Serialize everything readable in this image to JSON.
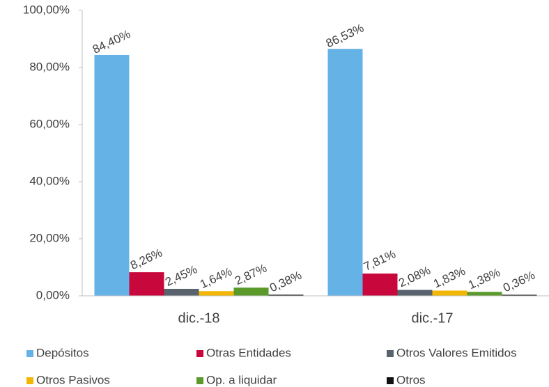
{
  "chart_data": {
    "type": "bar",
    "categories": [
      "dic.-18",
      "dic.-17"
    ],
    "series": [
      {
        "name": "Depósitos",
        "color": "#64b2e6",
        "values": [
          84.4,
          86.53
        ],
        "value_labels": [
          "84,40%",
          "86,53%"
        ]
      },
      {
        "name": "Otras Entidades",
        "color": "#c8073d",
        "values": [
          8.26,
          7.81
        ],
        "value_labels": [
          "8,26%",
          "7,81%"
        ]
      },
      {
        "name": "Otros Valores Emitidos",
        "color": "#59636d",
        "values": [
          2.45,
          2.08
        ],
        "value_labels": [
          "2,45%",
          "2,08%"
        ]
      },
      {
        "name": "Otros Pasivos",
        "color": "#f2b705",
        "values": [
          1.64,
          1.83
        ],
        "value_labels": [
          "1,64%",
          "1,83%"
        ]
      },
      {
        "name": "Op. a liquidar",
        "color": "#5b9a2a",
        "values": [
          2.87,
          1.38
        ],
        "value_labels": [
          "2,87%",
          "1,38%"
        ]
      },
      {
        "name": "Otros",
        "color": "#111111",
        "values": [
          0.38,
          0.36
        ],
        "value_labels": [
          "0,38%",
          "0,36%"
        ]
      }
    ],
    "ylim": [
      0,
      100
    ],
    "yticks": [
      {
        "value": 0,
        "label": "0,00%"
      },
      {
        "value": 20,
        "label": "20,00%"
      },
      {
        "value": 40,
        "label": "40,00%"
      },
      {
        "value": 60,
        "label": "60,00%"
      },
      {
        "value": 80,
        "label": "80,00%"
      },
      {
        "value": 100,
        "label": "100,00%"
      }
    ],
    "grid": false
  }
}
